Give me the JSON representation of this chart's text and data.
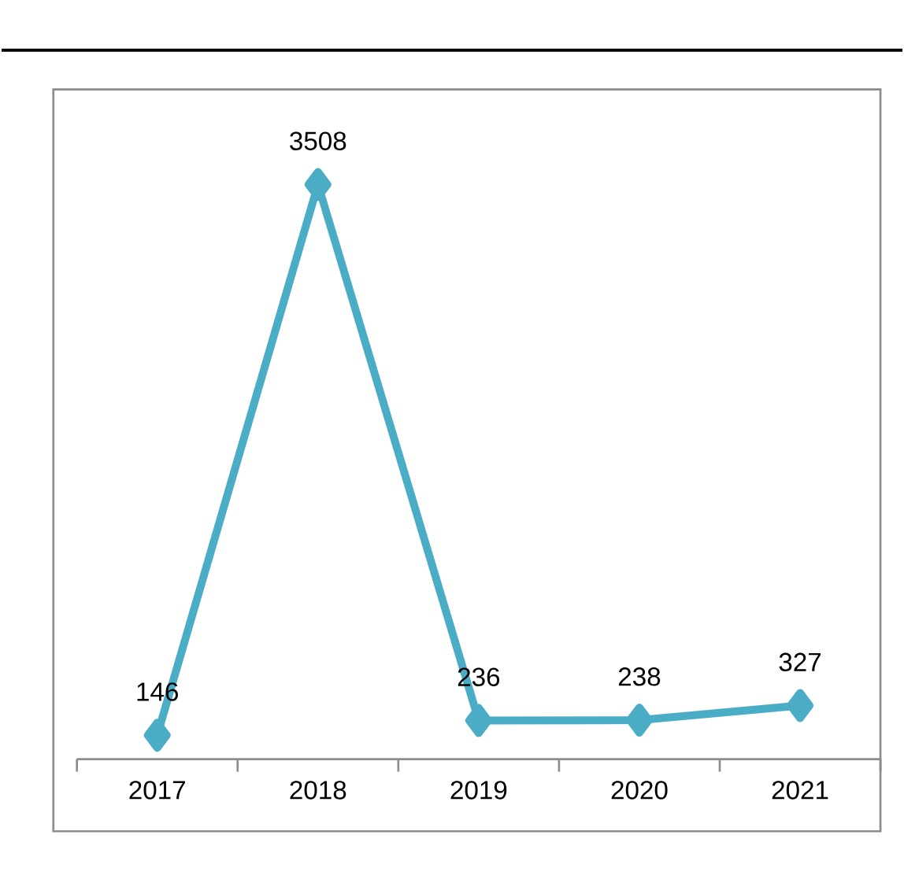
{
  "chart_data": {
    "type": "line",
    "categories": [
      "2017",
      "2018",
      "2019",
      "2020",
      "2021"
    ],
    "series": [
      {
        "color": "#4bacc6",
        "values": [
          146,
          3508,
          236,
          238,
          327
        ]
      }
    ],
    "marker": "diamond",
    "line_style": "solid",
    "data_labels": true,
    "grid": false,
    "tick_labels": "x"
  }
}
